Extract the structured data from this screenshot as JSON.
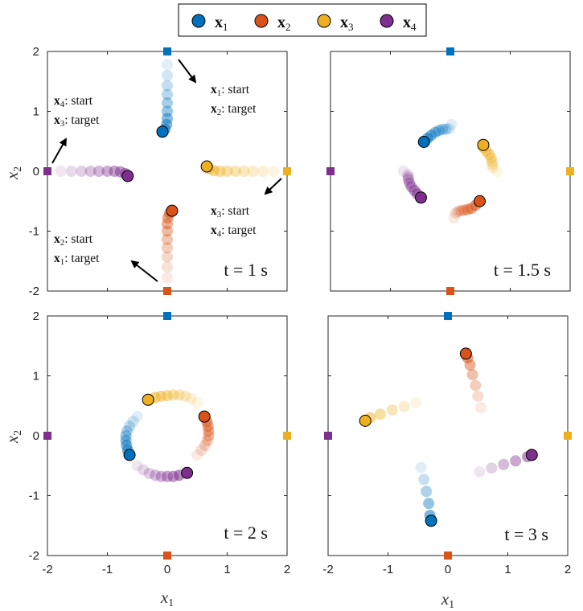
{
  "legend": [
    {
      "name": "x",
      "sub": "1",
      "color": "#0072BD"
    },
    {
      "name": "x",
      "sub": "2",
      "color": "#D95319"
    },
    {
      "name": "x",
      "sub": "3",
      "color": "#EDB120"
    },
    {
      "name": "x",
      "sub": "4",
      "color": "#7E2F8E"
    }
  ],
  "colors": {
    "x1": "#0072BD",
    "x2": "#D95319",
    "x3": "#EDB120",
    "x4": "#7E2F8E"
  },
  "axes": {
    "xlabel": "x",
    "xlabel_sub": "1",
    "ylabel": "x",
    "ylabel_sub": "2",
    "xticks": [
      "-2",
      "-1",
      "0",
      "1",
      "2"
    ],
    "yticks": [
      "2",
      "1",
      "0",
      "-1",
      "-2"
    ]
  },
  "annotations": [
    {
      "var": "x",
      "sub": "1",
      "text": ": start"
    },
    {
      "var": "x",
      "sub": "2",
      "text": ": target"
    },
    {
      "var": "x",
      "sub": "4",
      "text": ": start"
    },
    {
      "var": "x",
      "sub": "3",
      "text": ": target"
    },
    {
      "var": "x",
      "sub": "3",
      "text": ": start"
    },
    {
      "var": "x",
      "sub": "4",
      "text": ": target"
    },
    {
      "var": "x",
      "sub": "2",
      "text": ": start"
    },
    {
      "var": "x",
      "sub": "1",
      "text": ": target"
    }
  ],
  "chart_data": [
    {
      "type": "scatter",
      "time_label": "t = 1 s",
      "xlim": [
        -2,
        2
      ],
      "ylim": [
        -2,
        2
      ],
      "targets": {
        "x1": [
          0,
          2
        ],
        "x2": [
          0,
          -2
        ],
        "x3": [
          2,
          0
        ],
        "x4": [
          -2,
          0
        ]
      },
      "series": [
        {
          "name": "x1",
          "x": [
            0,
            0,
            0,
            0,
            0,
            0,
            0,
            -0.01,
            -0.04,
            -0.08
          ],
          "y": [
            1.78,
            1.6,
            1.43,
            1.28,
            1.14,
            1.0,
            0.88,
            0.78,
            0.7,
            0.66
          ]
        },
        {
          "name": "x2",
          "x": [
            0,
            0,
            0,
            0,
            0,
            0,
            0,
            0.01,
            0.04,
            0.08
          ],
          "y": [
            -1.78,
            -1.6,
            -1.43,
            -1.28,
            -1.14,
            -1.0,
            -0.88,
            -0.78,
            -0.7,
            -0.66
          ]
        },
        {
          "name": "x3",
          "x": [
            1.78,
            1.6,
            1.43,
            1.28,
            1.14,
            1.0,
            0.88,
            0.78,
            0.7,
            0.66
          ],
          "y": [
            0,
            0,
            0,
            0,
            0,
            0,
            0,
            0.01,
            0.04,
            0.08
          ]
        },
        {
          "name": "x4",
          "x": [
            -1.78,
            -1.6,
            -1.43,
            -1.28,
            -1.14,
            -1.0,
            -0.88,
            -0.78,
            -0.7,
            -0.66
          ],
          "y": [
            0,
            0,
            0,
            0,
            0,
            0,
            0,
            -0.01,
            -0.04,
            -0.08
          ]
        }
      ]
    },
    {
      "type": "scatter",
      "time_label": "t = 1.5 s",
      "xlim": [
        -2,
        2
      ],
      "ylim": [
        -2,
        2
      ],
      "targets": {
        "x1": [
          0,
          2
        ],
        "x2": [
          0,
          -2
        ],
        "x3": [
          2,
          0
        ],
        "x4": [
          -2,
          0
        ]
      },
      "series": [
        {
          "name": "x1",
          "x": [
            0.02,
            -0.03,
            -0.08,
            -0.13,
            -0.19,
            -0.25,
            -0.32,
            -0.38,
            -0.44
          ],
          "y": [
            0.78,
            0.71,
            0.7,
            0.7,
            0.68,
            0.65,
            0.6,
            0.55,
            0.49
          ]
        },
        {
          "name": "x2",
          "x": [
            0.06,
            0.09,
            0.13,
            0.18,
            0.23,
            0.29,
            0.35,
            0.42,
            0.49
          ],
          "y": [
            -0.78,
            -0.7,
            -0.67,
            -0.66,
            -0.65,
            -0.64,
            -0.62,
            -0.57,
            -0.5
          ]
        },
        {
          "name": "x3",
          "x": [
            0.78,
            0.71,
            0.7,
            0.7,
            0.68,
            0.65,
            0.6,
            0.55,
            0.55
          ],
          "y": [
            0,
            0.06,
            0.11,
            0.16,
            0.22,
            0.28,
            0.34,
            0.4,
            0.44
          ]
        },
        {
          "name": "x4",
          "x": [
            -0.78,
            -0.71,
            -0.7,
            -0.7,
            -0.68,
            -0.65,
            -0.6,
            -0.55,
            -0.49
          ],
          "y": [
            0.0,
            -0.06,
            -0.1,
            -0.14,
            -0.2,
            -0.26,
            -0.32,
            -0.38,
            -0.44
          ]
        }
      ]
    },
    {
      "type": "scatter",
      "time_label": "t = 2 s",
      "xlim": [
        -2,
        2
      ],
      "ylim": [
        -2,
        2
      ],
      "targets": {
        "x1": [
          0,
          2
        ],
        "x2": [
          0,
          -2
        ],
        "x3": [
          2,
          0
        ],
        "x4": [
          -2,
          0
        ]
      },
      "series": [
        {
          "name": "x1",
          "x": [
            -0.5,
            -0.57,
            -0.63,
            -0.67,
            -0.69,
            -0.69,
            -0.68,
            -0.66,
            -0.63
          ],
          "y": [
            0.32,
            0.24,
            0.16,
            0.08,
            0.0,
            -0.08,
            -0.16,
            -0.24,
            -0.32
          ]
        },
        {
          "name": "x2",
          "x": [
            0.5,
            0.57,
            0.63,
            0.67,
            0.69,
            0.69,
            0.68,
            0.66,
            0.62
          ],
          "y": [
            -0.32,
            -0.24,
            -0.16,
            -0.08,
            0.0,
            0.08,
            0.16,
            0.24,
            0.32
          ]
        },
        {
          "name": "x3",
          "x": [
            0.5,
            0.4,
            0.3,
            0.2,
            0.1,
            0.0,
            -0.1,
            -0.2,
            -0.32
          ],
          "y": [
            0.55,
            0.62,
            0.66,
            0.68,
            0.68,
            0.67,
            0.66,
            0.64,
            0.6
          ]
        },
        {
          "name": "x4",
          "x": [
            -0.5,
            -0.4,
            -0.3,
            -0.2,
            -0.1,
            0.0,
            0.1,
            0.2,
            0.33
          ],
          "y": [
            -0.5,
            -0.57,
            -0.63,
            -0.66,
            -0.68,
            -0.68,
            -0.68,
            -0.66,
            -0.62
          ]
        }
      ]
    },
    {
      "type": "scatter",
      "time_label": "t = 3 s",
      "xlim": [
        -2,
        2
      ],
      "ylim": [
        -2,
        2
      ],
      "targets": {
        "x1": [
          0,
          2
        ],
        "x2": [
          0,
          -2
        ],
        "x3": [
          2,
          0
        ],
        "x4": [
          -2,
          0
        ]
      },
      "series": [
        {
          "name": "x1",
          "x": [
            -0.45,
            -0.4,
            -0.36,
            -0.32,
            -0.3,
            -0.28
          ],
          "y": [
            -0.53,
            -0.73,
            -0.93,
            -1.13,
            -1.33,
            -1.42
          ]
        },
        {
          "name": "x2",
          "x": [
            0.55,
            0.5,
            0.46,
            0.41,
            0.37,
            0.33,
            0.3
          ],
          "y": [
            0.47,
            0.66,
            0.84,
            1.02,
            1.18,
            1.3,
            1.37
          ]
        },
        {
          "name": "x3",
          "x": [
            -0.53,
            -0.73,
            -0.93,
            -1.13,
            -1.3,
            -1.38
          ],
          "y": [
            0.55,
            0.49,
            0.43,
            0.36,
            0.3,
            0.25
          ]
        },
        {
          "name": "x4",
          "x": [
            0.53,
            0.73,
            0.93,
            1.13,
            1.33,
            1.4
          ],
          "y": [
            -0.6,
            -0.54,
            -0.48,
            -0.42,
            -0.35,
            -0.32
          ]
        }
      ]
    }
  ]
}
